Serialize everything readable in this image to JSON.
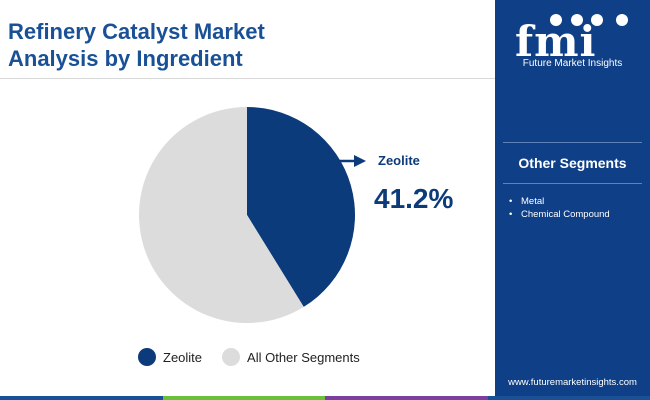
{
  "title": {
    "line1": "Refinery Catalyst Market",
    "line2": "Analysis by Ingredient"
  },
  "chart_data": {
    "type": "pie",
    "title": "Refinery Catalyst Market Analysis by Ingredient",
    "slices": [
      {
        "label": "Zeolite",
        "value": 41.2,
        "color": "#0b3b7a"
      },
      {
        "label": "All Other Segments",
        "value": 58.8,
        "color": "#dcdcdc"
      }
    ],
    "start_angle_deg": 0,
    "direction": "clockwise",
    "callout": {
      "label": "Zeolite",
      "value_text": "41.2%"
    },
    "legend_position": "bottom"
  },
  "sidebar": {
    "logo_text": "Future Market Insights",
    "segments_heading": "Other Segments",
    "segments": [
      "Metal",
      "Chemical Compound"
    ],
    "url": "www.futuremarketinsights.com",
    "bg_color": "#0f3f87"
  },
  "bottom_bar_colors": [
    "#1a5196",
    "#6bbf3a",
    "#7b3fa0",
    "#1a5196"
  ]
}
